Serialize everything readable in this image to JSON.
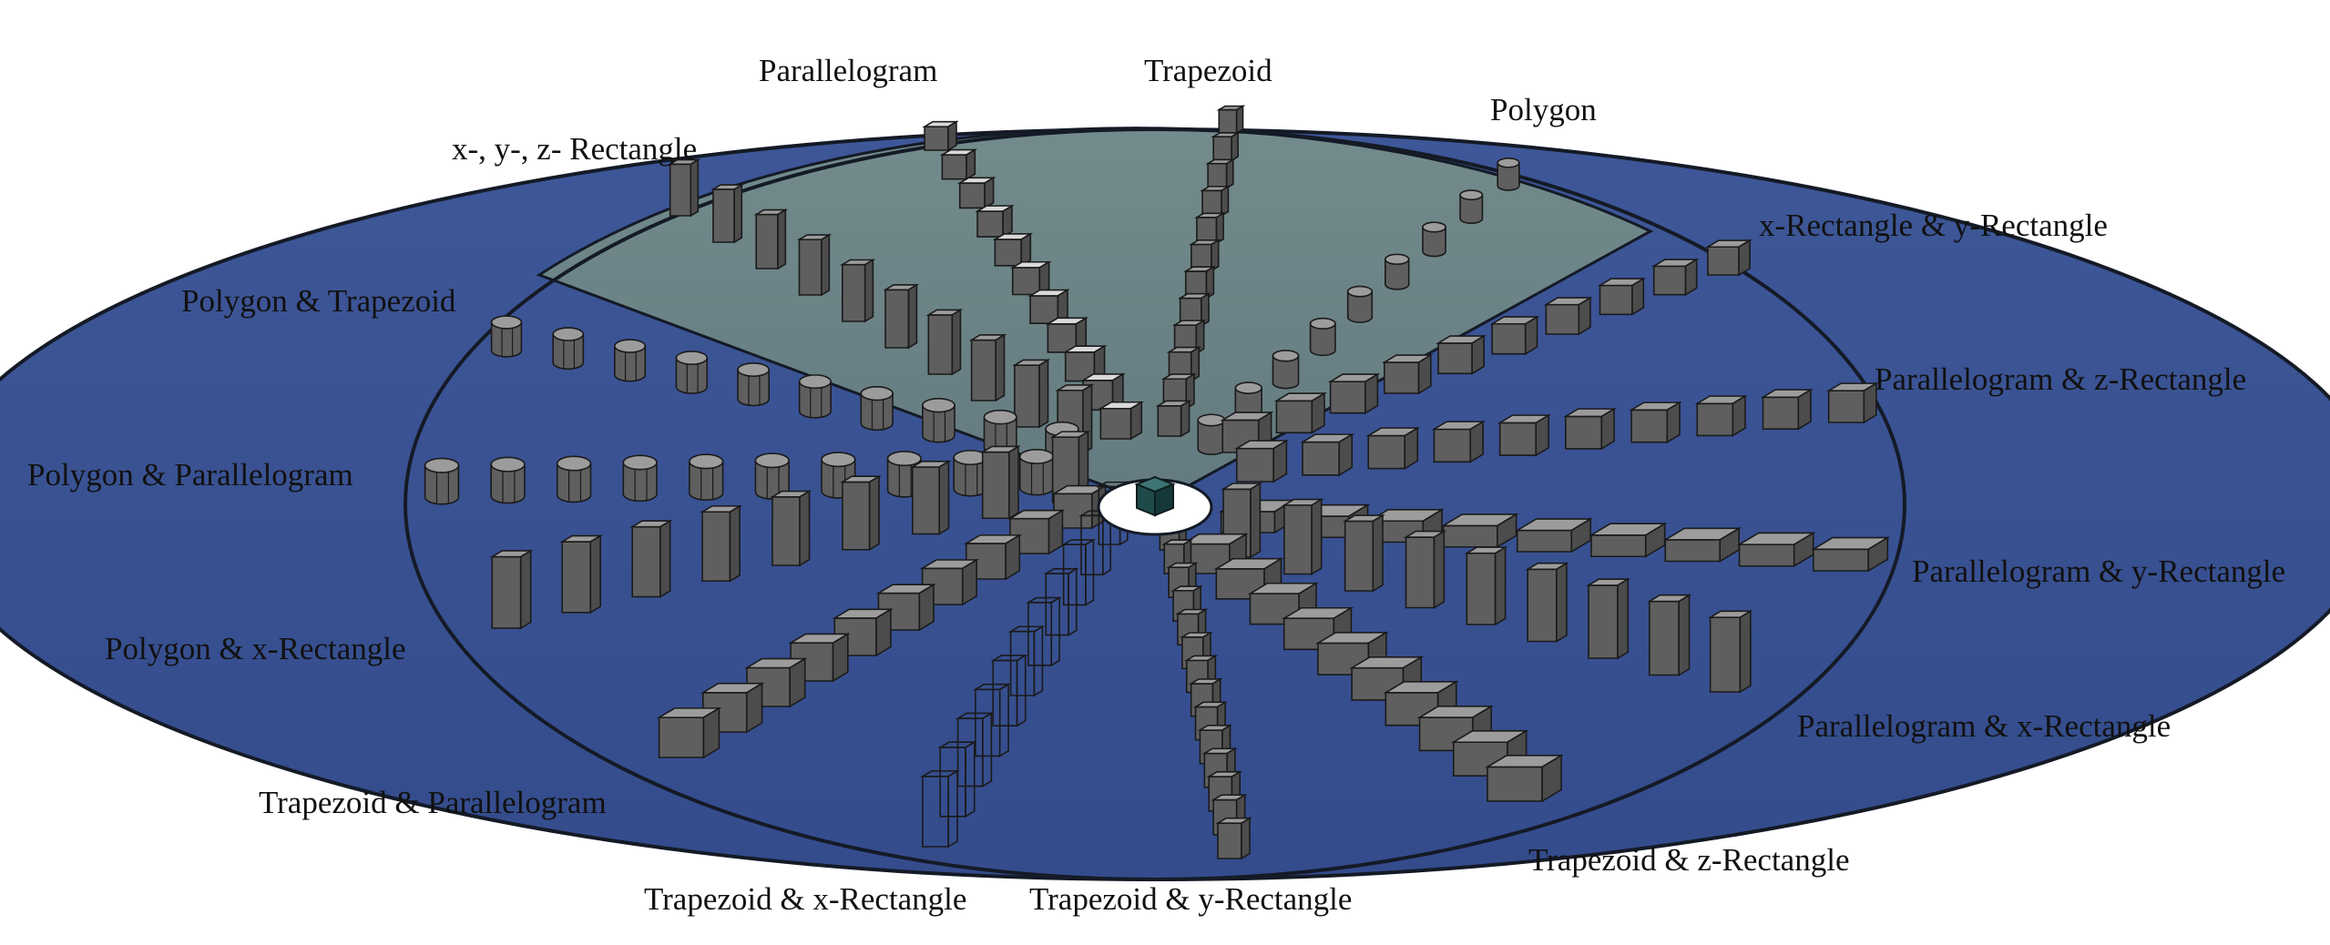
{
  "colors": {
    "background": "#ffffff",
    "disk_blue": "#3e5596",
    "sector_grey": "#6c8487",
    "rim": "#141a26",
    "block_face": "#5f5f5f",
    "block_top": "#9c9c9c",
    "block_light": "#d9d9d9",
    "center_cube": "#1f4a4a"
  },
  "labels": [
    {
      "id": "parallelogram",
      "text": "Parallelogram"
    },
    {
      "id": "trapezoid",
      "text": "Trapezoid"
    },
    {
      "id": "polygon",
      "text": "Polygon"
    },
    {
      "id": "xyz-rectangle",
      "text": "x-, y-, z- Rectangle"
    },
    {
      "id": "x-rect-y-rect",
      "text": "x-Rectangle & y-Rectangle"
    },
    {
      "id": "polygon-trapezoid",
      "text": "Polygon & Trapezoid"
    },
    {
      "id": "parallelogram-z-rect",
      "text": "Parallelogram & z-Rectangle"
    },
    {
      "id": "polygon-parallelogram",
      "text": "Polygon & Parallelogram"
    },
    {
      "id": "parallelogram-y-rect",
      "text": "Parallelogram & y-Rectangle"
    },
    {
      "id": "polygon-x-rect",
      "text": "Polygon & x-Rectangle"
    },
    {
      "id": "parallelogram-x-rect",
      "text": "Parallelogram & x-Rectangle"
    },
    {
      "id": "trapezoid-parallelogram",
      "text": "Trapezoid & Parallelogram"
    },
    {
      "id": "trapezoid-z-rect",
      "text": "Trapezoid & z-Rectangle"
    },
    {
      "id": "trapezoid-x-rect",
      "text": "Trapezoid & x-Rectangle"
    },
    {
      "id": "trapezoid-y-rect",
      "text": "Trapezoid & y-Rectangle"
    }
  ],
  "spokes": [
    {
      "id": "xyz-rectangle",
      "shape": "tall-box",
      "count": 10,
      "sector": "grey"
    },
    {
      "id": "parallelogram",
      "shape": "slanted-box",
      "count": 11,
      "sector": "grey"
    },
    {
      "id": "trapezoid",
      "shape": "wedge",
      "count": 12,
      "sector": "grey"
    },
    {
      "id": "polygon",
      "shape": "cylinder",
      "count": 9,
      "sector": "grey"
    },
    {
      "id": "x-rect-y-rect",
      "shape": "cube",
      "count": 10,
      "sector": "blue"
    },
    {
      "id": "parallelogram-z-rect",
      "shape": "cube",
      "count": 10,
      "sector": "blue"
    },
    {
      "id": "parallelogram-y-rect",
      "shape": "flat-slab",
      "count": 9,
      "sector": "blue"
    },
    {
      "id": "parallelogram-x-rect",
      "shape": "tall-box",
      "count": 9,
      "sector": "blue"
    },
    {
      "id": "trapezoid-z-rect",
      "shape": "flat-box",
      "count": 10,
      "sector": "blue"
    },
    {
      "id": "trapezoid-y-rect",
      "shape": "thin-box",
      "count": 14,
      "sector": "blue"
    },
    {
      "id": "trapezoid-x-rect",
      "shape": "outline-box",
      "count": 11,
      "sector": "blue"
    },
    {
      "id": "trapezoid-parallelogram",
      "shape": "cube",
      "count": 10,
      "sector": "blue"
    },
    {
      "id": "polygon-x-rect",
      "shape": "tall-box",
      "count": 9,
      "sector": "blue"
    },
    {
      "id": "polygon-parallelogram",
      "shape": "hexagon",
      "count": 10,
      "sector": "blue"
    },
    {
      "id": "polygon-trapezoid",
      "shape": "hexagon",
      "count": 10,
      "sector": "blue"
    }
  ]
}
